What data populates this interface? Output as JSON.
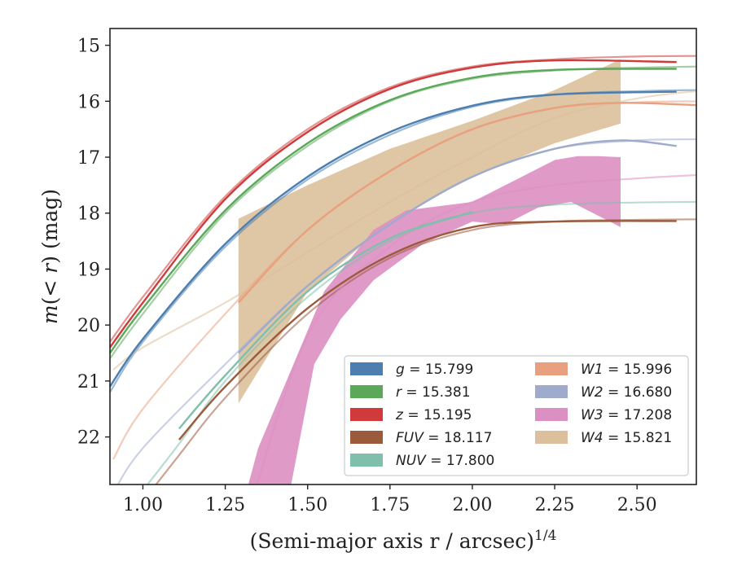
{
  "chart_data": {
    "type": "line",
    "title": "",
    "xlabel": "(Semi-major axis r / arcsec)",
    "xlabel_sup": "1/4",
    "ylabel_prefix": "m(",
    "ylabel_math": "< r",
    "ylabel_suffix": ") (mag)",
    "xlim": [
      0.9,
      2.68
    ],
    "ylim": [
      22.85,
      14.7
    ],
    "y_inverted": true,
    "xticks": [
      1.0,
      1.25,
      1.5,
      1.75,
      2.0,
      2.25,
      2.5
    ],
    "xtick_labels": [
      "1.00",
      "1.25",
      "1.50",
      "1.75",
      "2.00",
      "2.25",
      "2.50"
    ],
    "yticks": [
      15,
      16,
      17,
      18,
      19,
      20,
      21,
      22
    ],
    "ytick_labels": [
      "15",
      "16",
      "17",
      "18",
      "19",
      "20",
      "21",
      "22"
    ],
    "grid": false,
    "legend_placement": "lower-right",
    "series": [
      {
        "id": "g",
        "label_var": "g",
        "label_val": " = 15.799",
        "color": "#4c7fb0",
        "model": [
          [
            0.9,
            21.2
          ],
          [
            1.0,
            20.3
          ],
          [
            1.25,
            18.6
          ],
          [
            1.5,
            17.4
          ],
          [
            1.75,
            16.6
          ],
          [
            2.0,
            16.1
          ],
          [
            2.25,
            15.88
          ],
          [
            2.5,
            15.82
          ],
          [
            2.68,
            15.8
          ]
        ],
        "data": [
          [
            0.9,
            21.1
          ],
          [
            1.0,
            20.25
          ],
          [
            1.25,
            18.55
          ],
          [
            1.5,
            17.35
          ],
          [
            1.75,
            16.55
          ],
          [
            2.0,
            16.08
          ],
          [
            2.25,
            15.88
          ],
          [
            2.62,
            15.83
          ]
        ]
      },
      {
        "id": "r",
        "label_var": "r",
        "label_val": " = 15.381",
        "color": "#5ba85a",
        "model": [
          [
            0.9,
            20.6
          ],
          [
            1.0,
            19.8
          ],
          [
            1.25,
            18.0
          ],
          [
            1.5,
            16.8
          ],
          [
            1.75,
            16.0
          ],
          [
            2.0,
            15.6
          ],
          [
            2.25,
            15.45
          ],
          [
            2.5,
            15.4
          ],
          [
            2.68,
            15.38
          ]
        ],
        "data": [
          [
            0.9,
            20.5
          ],
          [
            1.0,
            19.7
          ],
          [
            1.25,
            17.95
          ],
          [
            1.5,
            16.75
          ],
          [
            1.75,
            15.98
          ],
          [
            2.0,
            15.58
          ],
          [
            2.25,
            15.44
          ],
          [
            2.62,
            15.42
          ]
        ]
      },
      {
        "id": "z",
        "label_var": "z",
        "label_val": " = 15.195",
        "color": "#d03a3a",
        "model": [
          [
            0.9,
            20.3
          ],
          [
            1.0,
            19.5
          ],
          [
            1.25,
            17.7
          ],
          [
            1.5,
            16.5
          ],
          [
            1.75,
            15.75
          ],
          [
            2.0,
            15.38
          ],
          [
            2.25,
            15.25
          ],
          [
            2.5,
            15.2
          ],
          [
            2.68,
            15.19
          ]
        ],
        "data": [
          [
            0.9,
            20.4
          ],
          [
            1.0,
            19.6
          ],
          [
            1.25,
            17.75
          ],
          [
            1.5,
            16.55
          ],
          [
            1.75,
            15.78
          ],
          [
            2.0,
            15.4
          ],
          [
            2.25,
            15.27
          ],
          [
            2.62,
            15.3
          ]
        ]
      },
      {
        "id": "fuv",
        "label_var": "FUV",
        "label_val": " = 18.117",
        "color": "#9c5a3c",
        "model": [
          [
            0.9,
            23.9
          ],
          [
            1.1,
            22.4
          ],
          [
            1.25,
            21.3
          ],
          [
            1.5,
            19.8
          ],
          [
            1.75,
            18.8
          ],
          [
            2.0,
            18.3
          ],
          [
            2.25,
            18.15
          ],
          [
            2.5,
            18.12
          ],
          [
            2.68,
            18.11
          ]
        ],
        "data": [
          [
            1.11,
            22.05
          ],
          [
            1.25,
            21.1
          ],
          [
            1.5,
            19.7
          ],
          [
            1.75,
            18.75
          ],
          [
            2.0,
            18.25
          ],
          [
            2.25,
            18.15
          ],
          [
            2.62,
            18.14
          ]
        ]
      },
      {
        "id": "nuv",
        "label_var": "NUV",
        "label_val": " = 17.800",
        "color": "#7fbfab",
        "model": [
          [
            0.9,
            23.7
          ],
          [
            1.1,
            22.2
          ],
          [
            1.25,
            21.0
          ],
          [
            1.5,
            19.5
          ],
          [
            1.75,
            18.5
          ],
          [
            2.0,
            18.0
          ],
          [
            2.25,
            17.85
          ],
          [
            2.5,
            17.81
          ],
          [
            2.68,
            17.8
          ]
        ],
        "data": [
          [
            1.11,
            21.85
          ],
          [
            1.25,
            20.9
          ],
          [
            1.5,
            19.4
          ],
          [
            1.75,
            18.45
          ],
          [
            2.0,
            17.98
          ]
        ]
      },
      {
        "id": "w1",
        "label_var": "W1",
        "label_val": " = 15.996",
        "color": "#e9a07f",
        "model": [
          [
            0.91,
            22.4
          ],
          [
            1.0,
            21.5
          ],
          [
            1.25,
            19.8
          ],
          [
            1.5,
            18.3
          ],
          [
            1.75,
            17.25
          ],
          [
            2.0,
            16.5
          ],
          [
            2.25,
            16.12
          ],
          [
            2.5,
            16.02
          ],
          [
            2.68,
            16.0
          ]
        ],
        "data": [
          [
            1.29,
            19.6
          ],
          [
            1.5,
            18.3
          ],
          [
            1.75,
            17.25
          ],
          [
            2.0,
            16.5
          ],
          [
            2.25,
            16.12
          ],
          [
            2.45,
            16.03
          ],
          [
            2.68,
            16.07
          ]
        ]
      },
      {
        "id": "w2",
        "label_var": "W2",
        "label_val": " = 16.680",
        "color": "#9fabcc",
        "model": [
          [
            0.91,
            23.0
          ],
          [
            1.0,
            22.2
          ],
          [
            1.25,
            20.7
          ],
          [
            1.5,
            19.3
          ],
          [
            1.75,
            18.2
          ],
          [
            2.0,
            17.35
          ],
          [
            2.25,
            16.85
          ],
          [
            2.5,
            16.7
          ],
          [
            2.68,
            16.68
          ]
        ],
        "data": [
          [
            1.29,
            20.5
          ],
          [
            1.5,
            19.3
          ],
          [
            1.75,
            18.2
          ],
          [
            2.0,
            17.35
          ],
          [
            2.25,
            16.85
          ],
          [
            2.45,
            16.7
          ],
          [
            2.62,
            16.8
          ]
        ]
      },
      {
        "id": "w3",
        "label_var": "W3",
        "label_val": " = 17.208",
        "color": "#dc8fc2",
        "model": [
          [
            1.29,
            24.0
          ],
          [
            1.5,
            20.2
          ],
          [
            1.75,
            18.6
          ],
          [
            2.0,
            17.8
          ],
          [
            2.25,
            17.5
          ],
          [
            2.5,
            17.38
          ],
          [
            2.68,
            17.32
          ]
        ],
        "band_upper": [
          [
            1.29,
            23.5
          ],
          [
            1.35,
            22.2
          ],
          [
            1.45,
            20.8
          ],
          [
            1.55,
            19.4
          ],
          [
            1.7,
            18.3
          ],
          [
            1.8,
            17.95
          ],
          [
            2.0,
            17.8
          ],
          [
            2.1,
            17.5
          ],
          [
            2.25,
            17.05
          ],
          [
            2.32,
            16.98
          ],
          [
            2.38,
            16.98
          ],
          [
            2.45,
            17.0
          ]
        ],
        "band_lower": [
          [
            1.29,
            23.5
          ],
          [
            1.35,
            23.0
          ],
          [
            1.45,
            22.85
          ],
          [
            1.52,
            20.7
          ],
          [
            1.6,
            19.9
          ],
          [
            1.7,
            19.2
          ],
          [
            1.85,
            18.55
          ],
          [
            2.0,
            18.15
          ],
          [
            2.1,
            18.2
          ],
          [
            2.2,
            17.9
          ],
          [
            2.3,
            17.8
          ],
          [
            2.45,
            18.25
          ]
        ]
      },
      {
        "id": "w4",
        "label_var": "W4",
        "label_val": " = 15.821",
        "color": "#dcc09b",
        "model": [
          [
            0.91,
            20.8
          ],
          [
            1.0,
            20.4
          ],
          [
            1.25,
            19.6
          ],
          [
            1.5,
            18.7
          ],
          [
            1.75,
            17.8
          ],
          [
            2.0,
            17.0
          ],
          [
            2.25,
            16.3
          ],
          [
            2.5,
            15.95
          ],
          [
            2.68,
            15.82
          ]
        ],
        "band_upper": [
          [
            1.29,
            18.1
          ],
          [
            1.5,
            17.5
          ],
          [
            1.75,
            16.85
          ],
          [
            2.0,
            16.35
          ],
          [
            2.25,
            15.8
          ],
          [
            2.45,
            15.25
          ]
        ],
        "band_lower": [
          [
            1.29,
            21.4
          ],
          [
            1.5,
            19.4
          ],
          [
            1.75,
            18.15
          ],
          [
            2.0,
            17.35
          ],
          [
            2.25,
            16.75
          ],
          [
            2.45,
            16.4
          ]
        ]
      }
    ]
  }
}
